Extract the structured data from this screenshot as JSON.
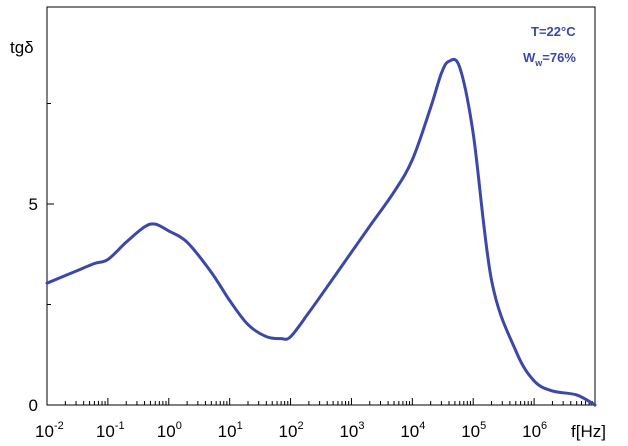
{
  "chart_data": {
    "type": "line",
    "title": "",
    "xlabel": "f[Hz]",
    "ylabel": "tgδ",
    "x_scale": "log",
    "xlim": [
      0.01,
      10000000
    ],
    "ylim": [
      0,
      9.9
    ],
    "x_ticks": [
      {
        "base": "10",
        "exp": "-2"
      },
      {
        "base": "10",
        "exp": "-1"
      },
      {
        "base": "10",
        "exp": "0"
      },
      {
        "base": "10",
        "exp": "1"
      },
      {
        "base": "10",
        "exp": "2"
      },
      {
        "base": "10",
        "exp": "3"
      },
      {
        "base": "10",
        "exp": "4"
      },
      {
        "base": "10",
        "exp": "5"
      },
      {
        "base": "10",
        "exp": "6"
      }
    ],
    "y_ticks": [
      "0",
      "5"
    ],
    "grid": false,
    "legend": "none",
    "annotation_lines": [
      {
        "id": "temp",
        "main": "T=22°C"
      },
      {
        "id": "ww",
        "main": "W",
        "sub": "w",
        "rest": "=76%"
      }
    ],
    "line_color": "#3b48a8",
    "series": [
      {
        "x": [
          0.01,
          0.03,
          0.06,
          0.1,
          0.2,
          0.4,
          0.6,
          1,
          2,
          5,
          10,
          20,
          40,
          70,
          100,
          200,
          500,
          1000,
          2000,
          5000,
          10000,
          20000,
          30000,
          40000,
          60000,
          100000,
          200000,
          500000,
          1000000,
          2000000,
          5000000,
          10000000
        ],
        "y": [
          3.03,
          3.33,
          3.52,
          3.62,
          4.05,
          4.43,
          4.5,
          4.33,
          4.05,
          3.3,
          2.6,
          2.0,
          1.7,
          1.65,
          1.7,
          2.3,
          3.15,
          3.8,
          4.45,
          5.3,
          6.1,
          7.4,
          8.25,
          8.55,
          8.4,
          6.75,
          3.1,
          1.35,
          0.6,
          0.35,
          0.25,
          0.0
        ]
      }
    ]
  }
}
